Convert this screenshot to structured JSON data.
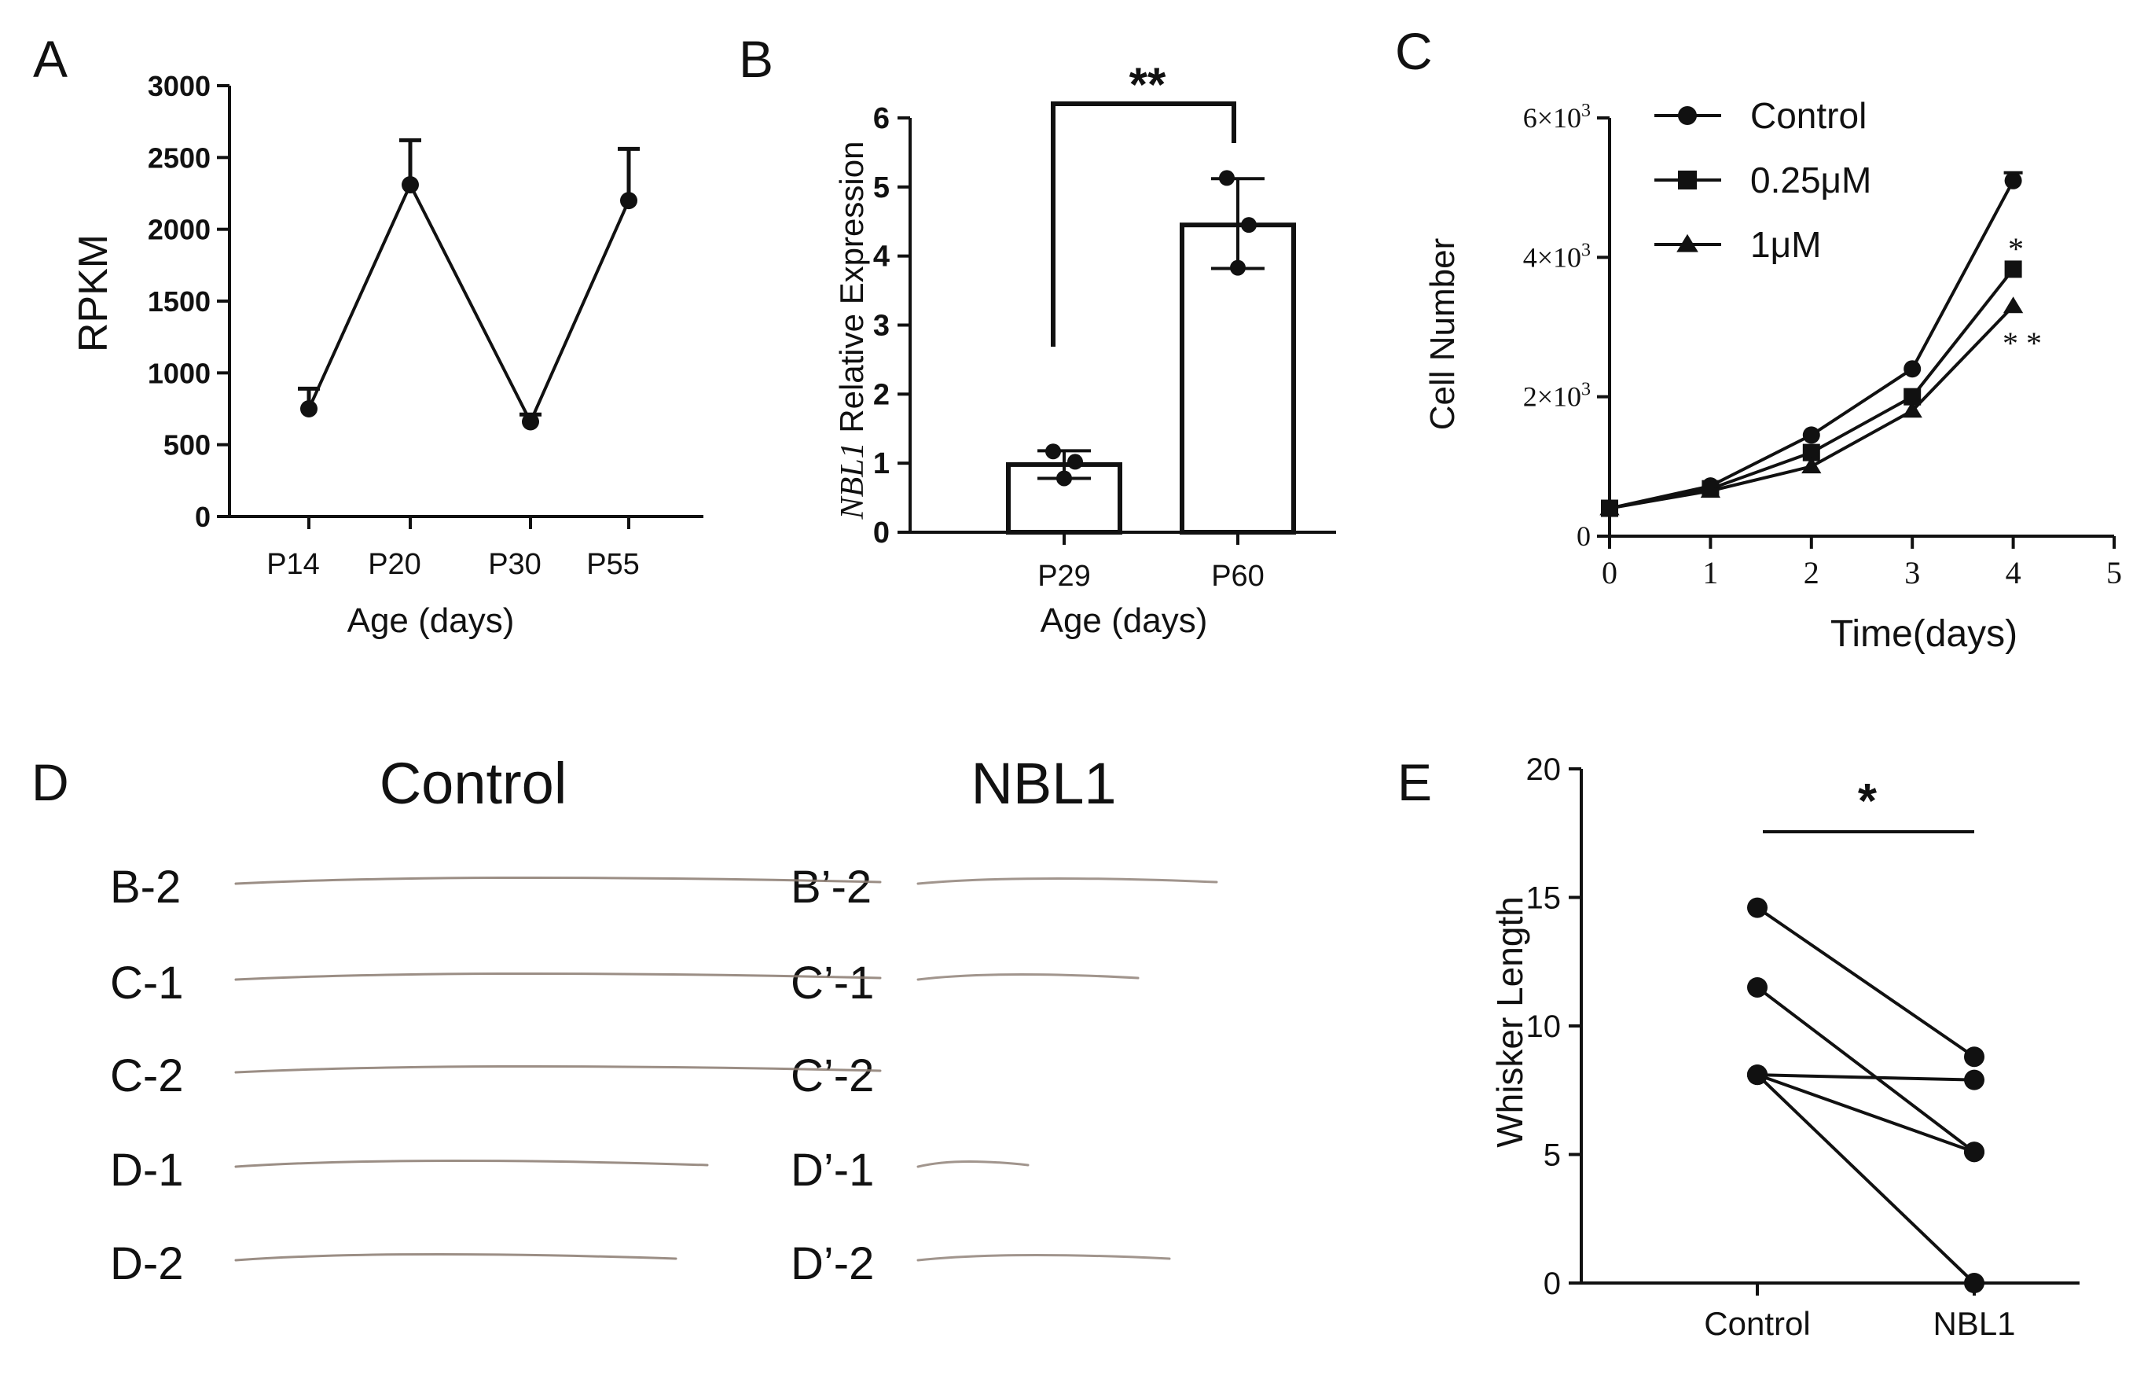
{
  "panel_labels": {
    "A": "A",
    "B": "B",
    "C": "C",
    "D": "D",
    "E": "E"
  },
  "chart_data": [
    {
      "id": "A",
      "type": "line",
      "title": "",
      "xlabel": "Age (days)",
      "ylabel": "RPKM",
      "categories": [
        "P14",
        "P20",
        "P30",
        "P55"
      ],
      "values": [
        750,
        2310,
        660,
        2200
      ],
      "error_upper": [
        890,
        2620,
        710,
        2560
      ],
      "ylim": [
        0,
        3000
      ],
      "yticks": [
        "0",
        "500",
        "1000",
        "1500",
        "2000",
        "2500",
        "3000"
      ]
    },
    {
      "id": "B",
      "type": "bar",
      "title": "",
      "xlabel": "Age (days)",
      "ylabel_italic": "NBL1",
      "ylabel_rest": " Relative Expression",
      "categories": [
        "P29",
        "P60"
      ],
      "values": [
        0.98,
        4.45
      ],
      "error_low": [
        0.78,
        3.82
      ],
      "error_high": [
        1.18,
        5.12
      ],
      "points": [
        [
          1.17,
          1.02,
          0.78
        ],
        [
          5.13,
          4.45,
          3.83
        ]
      ],
      "ylim": [
        0,
        6
      ],
      "yticks": [
        "0",
        "1",
        "2",
        "3",
        "4",
        "5",
        "6"
      ],
      "significance": "**"
    },
    {
      "id": "C",
      "type": "line",
      "title": "",
      "xlabel": "Time(days)",
      "ylabel": "Cell Number",
      "x": [
        0,
        1,
        2,
        3,
        4
      ],
      "xlim": [
        0,
        5
      ],
      "xticks": [
        "0",
        "1",
        "2",
        "3",
        "4",
        "5"
      ],
      "ylim": [
        0,
        6000
      ],
      "yticks": [
        {
          "value": 0,
          "base": "0",
          "exp": ""
        },
        {
          "value": 2000,
          "base": "2×10",
          "exp": "3"
        },
        {
          "value": 4000,
          "base": "4×10",
          "exp": "3"
        },
        {
          "value": 6000,
          "base": "6×10",
          "exp": "3"
        }
      ],
      "series": [
        {
          "name": "Control",
          "marker": "circle",
          "values": [
            400,
            720,
            1450,
            2400,
            5100
          ]
        },
        {
          "name": "0.25μM",
          "marker": "square",
          "values": [
            400,
            680,
            1200,
            2000,
            3830
          ]
        },
        {
          "name": "1μM",
          "marker": "triangle",
          "values": [
            400,
            650,
            1000,
            1800,
            3300
          ]
        }
      ],
      "annotations": [
        "*",
        "* *"
      ]
    },
    {
      "id": "E",
      "type": "line",
      "title": "",
      "xlabel": "",
      "ylabel": "Whisker Length",
      "categories": [
        "Control",
        "NBL1"
      ],
      "ylim": [
        0,
        20
      ],
      "yticks": [
        "0",
        "5",
        "10",
        "15",
        "20"
      ],
      "pairs": [
        [
          14.6,
          8.8
        ],
        [
          11.5,
          5.1
        ],
        [
          8.1,
          7.9
        ],
        [
          8.1,
          5.1
        ],
        [
          8.1,
          0.0
        ]
      ],
      "significance": "*"
    }
  ],
  "whiskers": {
    "control_title": "Control",
    "nbl1_title": "NBL1",
    "control_labels": [
      "B-2",
      "C-1",
      "C-2",
      "D-1",
      "D-2"
    ],
    "nbl1_labels": [
      "B’-2",
      "C’-1",
      "C’-2",
      "D’-1",
      "D’-2"
    ]
  }
}
